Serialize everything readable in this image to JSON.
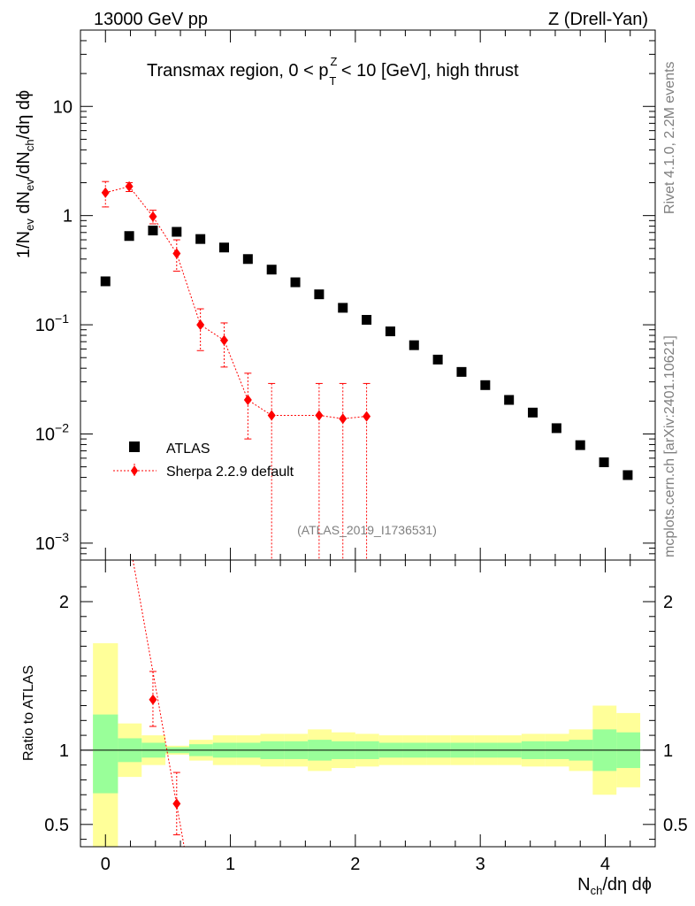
{
  "header": {
    "left": "13000 GeV pp",
    "right": "Z (Drell-Yan)",
    "side_top": "Rivet 4.1.0,  2.2M events",
    "side_bottom": "mcplots.cern.ch [arXiv:2401.10621]"
  },
  "chart_data": {
    "type": "scatter",
    "title_pre": "Transmax region, 0 < p",
    "title_sup": "Z",
    "title_sub": "T",
    "title_post": " < 10 [GeV], high thrust",
    "analysis_tag": "(ATLAS_2019_I1736531)",
    "xlabel": {
      "main": "N",
      "sub": "ch",
      "rest": "/dη dϕ"
    },
    "ylabel": {
      "p1": "1/N",
      "s1": "ev",
      "p2": " dN",
      "s2": "ev",
      "p3": "/dN",
      "s3": "ch",
      "p4": "/dη dϕ"
    },
    "ratio_ylabel": "Ratio to ATLAS",
    "xlim": [
      -0.2,
      4.4
    ],
    "ylim": [
      0.0007,
      50
    ],
    "ratio_ylim": [
      0.35,
      2.28
    ],
    "x_ticks": [
      "0",
      "1",
      "2",
      "3",
      "4"
    ],
    "y_ticks": [
      {
        "v": 10,
        "base": "10",
        "exp": ""
      },
      {
        "v": 1,
        "base": "1",
        "exp": ""
      },
      {
        "v": 0.1,
        "base": "10",
        "exp": "−1"
      },
      {
        "v": 0.01,
        "base": "10",
        "exp": "−2"
      },
      {
        "v": 0.001,
        "base": "10",
        "exp": "−3"
      }
    ],
    "ratio_ticks": [
      "0.5",
      "1",
      "2"
    ],
    "legend": {
      "data": "ATLAS",
      "mc": "Sherpa 2.2.9 default",
      "position": "lower-left"
    },
    "atlas": {
      "x": [
        0,
        0.19,
        0.38,
        0.57,
        0.76,
        0.95,
        1.14,
        1.33,
        1.52,
        1.71,
        1.9,
        2.09,
        2.28,
        2.47,
        2.66,
        2.85,
        3.04,
        3.23,
        3.42,
        3.61,
        3.8,
        3.99,
        4.18
      ],
      "y": [
        0.25,
        0.65,
        0.73,
        0.71,
        0.61,
        0.51,
        0.4,
        0.32,
        0.245,
        0.19,
        0.143,
        0.111,
        0.087,
        0.065,
        0.048,
        0.037,
        0.028,
        0.0205,
        0.0157,
        0.0113,
        0.0079,
        0.0055,
        0.0042
      ]
    },
    "sherpa": {
      "x": [
        0,
        0.19,
        0.38,
        0.57,
        0.76,
        0.95,
        1.14,
        1.33,
        1.71,
        1.9,
        2.09
      ],
      "y": [
        1.62,
        1.85,
        0.98,
        0.45,
        0.1,
        0.072,
        0.0205,
        0.0148,
        0.0148,
        0.0138,
        0.0145
      ],
      "err_up": [
        2.05,
        2.0,
        1.12,
        0.6,
        0.14,
        0.104,
        0.036,
        0.029,
        0.029,
        0.029,
        0.029
      ],
      "err_dn": [
        1.2,
        1.66,
        0.84,
        0.31,
        0.058,
        0.041,
        0.009,
        0.0005,
        0.0005,
        0.0005,
        0.0005
      ]
    },
    "ratio_band": {
      "edges": [
        -0.1,
        0.1,
        0.29,
        0.48,
        0.67,
        0.86,
        1.05,
        1.24,
        1.43,
        1.62,
        1.81,
        2.0,
        2.19,
        2.38,
        2.57,
        2.76,
        2.95,
        3.14,
        3.33,
        3.52,
        3.71,
        3.9,
        4.09,
        4.28
      ],
      "green_lo": [
        0.71,
        0.92,
        0.95,
        0.98,
        0.96,
        0.95,
        0.95,
        0.94,
        0.94,
        0.93,
        0.94,
        0.94,
        0.95,
        0.95,
        0.95,
        0.95,
        0.95,
        0.95,
        0.94,
        0.94,
        0.93,
        0.86,
        0.88
      ],
      "green_hi": [
        1.24,
        1.08,
        1.05,
        1.02,
        1.04,
        1.05,
        1.05,
        1.06,
        1.06,
        1.07,
        1.06,
        1.06,
        1.05,
        1.05,
        1.05,
        1.05,
        1.05,
        1.05,
        1.06,
        1.06,
        1.07,
        1.14,
        1.12
      ],
      "yellow_lo": [
        0.3,
        0.82,
        0.9,
        0.97,
        0.93,
        0.9,
        0.9,
        0.89,
        0.89,
        0.86,
        0.88,
        0.89,
        0.9,
        0.9,
        0.9,
        0.9,
        0.9,
        0.9,
        0.89,
        0.89,
        0.86,
        0.7,
        0.75
      ],
      "yellow_hi": [
        1.72,
        1.18,
        1.1,
        1.03,
        1.07,
        1.1,
        1.1,
        1.11,
        1.11,
        1.14,
        1.12,
        1.11,
        1.1,
        1.1,
        1.1,
        1.1,
        1.1,
        1.1,
        1.11,
        1.11,
        1.14,
        1.3,
        1.25
      ]
    },
    "ratio_sherpa": {
      "x": [
        0.38,
        0.57
      ],
      "y": [
        1.34,
        0.64
      ],
      "err_up": [
        1.53,
        0.85
      ],
      "err_dn": [
        1.16,
        0.43
      ],
      "line_start": [
        0.22,
        2.4
      ],
      "line_end": [
        0.63,
        0.35
      ]
    },
    "colors": {
      "data": "#000000",
      "mc": "#ff0000",
      "green": "#99ff99",
      "yellow": "#ffff99",
      "grey": "#7f7f7f"
    }
  }
}
